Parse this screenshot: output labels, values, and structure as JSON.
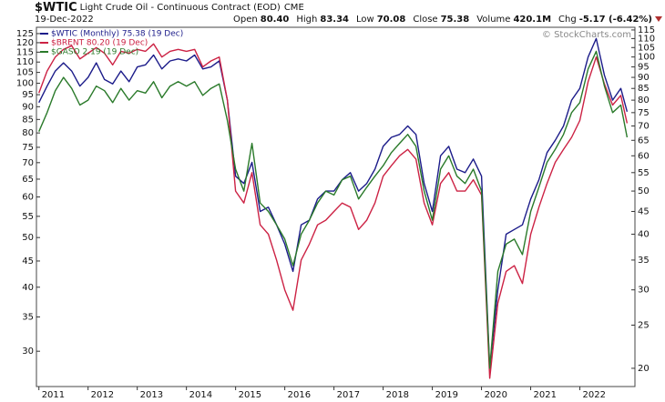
{
  "header": {
    "symbol": "$WTIC",
    "name": "Light Crude Oil - Continuous Contract (EOD)",
    "exchange": "CME",
    "date": "19-Dec-2022",
    "quote": [
      {
        "label": "Open",
        "value": "80.40"
      },
      {
        "label": "High",
        "value": "83.34"
      },
      {
        "label": "Low",
        "value": "70.08"
      },
      {
        "label": "Close",
        "value": "75.38"
      },
      {
        "label": "Volume",
        "value": "420.1M"
      },
      {
        "label": "Chg",
        "value": "-5.17 (-6.42%)"
      }
    ],
    "copyright": "© StockCharts.com"
  },
  "chart_data": {
    "type": "line",
    "log_scale": true,
    "grid": false,
    "legend": "upper left",
    "x": [
      2011,
      2011.167,
      2011.333,
      2011.5,
      2011.667,
      2011.833,
      2012,
      2012.167,
      2012.333,
      2012.5,
      2012.667,
      2012.833,
      2013,
      2013.167,
      2013.333,
      2013.5,
      2013.667,
      2013.833,
      2014,
      2014.167,
      2014.333,
      2014.5,
      2014.667,
      2014.833,
      2015,
      2015.167,
      2015.333,
      2015.5,
      2015.667,
      2015.833,
      2016,
      2016.167,
      2016.333,
      2016.5,
      2016.667,
      2016.833,
      2017,
      2017.167,
      2017.333,
      2017.5,
      2017.667,
      2017.833,
      2018,
      2018.167,
      2018.333,
      2018.5,
      2018.667,
      2018.833,
      2019,
      2019.167,
      2019.333,
      2019.5,
      2019.667,
      2019.833,
      2020,
      2020.167,
      2020.333,
      2020.5,
      2020.667,
      2020.833,
      2021,
      2021.167,
      2021.333,
      2021.5,
      2021.667,
      2021.833,
      2022,
      2022.167,
      2022.333,
      2022.5,
      2022.667,
      2022.833,
      2022.96
    ],
    "series": [
      {
        "name": "$WTIC (Monthly) 75.38 (19 Dec)",
        "color": "#1c1c8a",
        "axis": "y2",
        "values": [
          79,
          86,
          93,
          97,
          93,
          86,
          90,
          97,
          89,
          87,
          93,
          88,
          95,
          96,
          101,
          94,
          98,
          99,
          98,
          101,
          94,
          95,
          98,
          80,
          54,
          52,
          58,
          45,
          46,
          42,
          38,
          33,
          42,
          43,
          48,
          50,
          50,
          53,
          55,
          50,
          52,
          56,
          63,
          66,
          67,
          70,
          67,
          52,
          45,
          60,
          63,
          56,
          55,
          59,
          54,
          20,
          30,
          40,
          41,
          42,
          48,
          53,
          61,
          65,
          70,
          80,
          85,
          100,
          110,
          91,
          80,
          85,
          75.38
        ]
      },
      {
        "name": "$BRENT 80.20 (19 Dec)",
        "color": "#cc2244",
        "axis": "y2",
        "values": [
          83,
          93,
          100,
          104,
          106,
          99,
          102,
          105,
          102,
          96,
          103,
          102,
          104,
          103,
          107,
          100,
          103,
          104,
          103,
          104,
          95,
          98,
          100,
          80,
          50,
          47,
          55,
          42,
          40,
          35,
          30,
          27,
          35,
          38,
          42,
          43,
          45,
          47,
          46,
          41,
          43,
          47,
          54,
          57,
          60,
          62,
          59,
          47,
          42,
          52,
          55,
          50,
          50,
          53,
          49,
          19,
          28,
          33,
          34,
          31,
          40,
          46,
          52,
          58,
          62,
          66,
          72,
          88,
          100,
          87,
          78,
          82,
          71
        ]
      },
      {
        "name": "$GASO 2.19 (19 Dec)",
        "color": "#2a7a2a",
        "axis": "y2",
        "values": [
          68,
          75,
          84,
          90,
          85,
          78,
          80,
          86,
          84,
          79,
          85,
          80,
          84,
          83,
          88,
          81,
          86,
          88,
          86,
          88,
          82,
          85,
          87,
          72,
          56,
          50,
          64,
          47,
          45,
          42,
          39,
          34,
          40,
          43,
          47,
          50,
          49,
          53,
          54,
          48,
          51,
          54,
          57,
          61,
          64,
          67,
          63,
          50,
          43,
          56,
          60,
          54,
          52,
          56,
          50,
          20,
          33,
          38,
          39,
          36,
          45,
          51,
          58,
          62,
          67,
          75,
          79,
          94,
          103,
          86,
          75,
          78,
          66
        ]
      }
    ],
    "xlim": [
      2010.95,
      2023.12
    ],
    "xticks": [
      2011,
      2012,
      2013,
      2014,
      2015,
      2016,
      2017,
      2018,
      2019,
      2020,
      2021,
      2022
    ],
    "ylim": [
      25.6,
      128.6
    ],
    "yticks": [
      125,
      120,
      115,
      110,
      105,
      100,
      95,
      90,
      85,
      80,
      75,
      70,
      65,
      60,
      55,
      50,
      45,
      40,
      35,
      30
    ],
    "y2lim": [
      18.2,
      116.6
    ],
    "y2ticks": [
      115,
      110,
      105,
      100,
      95,
      90,
      85,
      80,
      75,
      70,
      65,
      60,
      55,
      50,
      45,
      40,
      35,
      30,
      25,
      20
    ]
  }
}
